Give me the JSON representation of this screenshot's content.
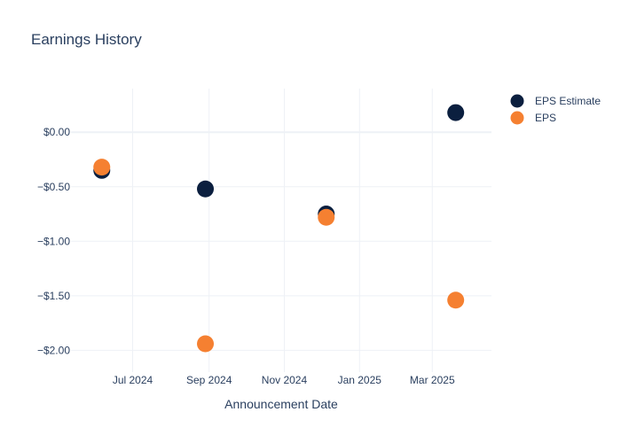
{
  "chart_data": {
    "type": "scatter",
    "title": "Earnings History",
    "xlabel": "Announcement Date",
    "ylabel": "",
    "x_ticks": [
      {
        "date": "2024-07-01",
        "label": "Jul 2024"
      },
      {
        "date": "2024-09-01",
        "label": "Sep 2024"
      },
      {
        "date": "2024-11-01",
        "label": "Nov 2024"
      },
      {
        "date": "2025-01-01",
        "label": "Jan 2025"
      },
      {
        "date": "2025-03-01",
        "label": "Mar 2025"
      }
    ],
    "xlim": [
      "2024-05-12",
      "2025-04-18"
    ],
    "y_ticks": [
      {
        "value": 0,
        "label": "$0.00"
      },
      {
        "value": -0.5,
        "label": "−$0.50"
      },
      {
        "value": -1.0,
        "label": "−$1.00"
      },
      {
        "value": -1.5,
        "label": "−$1.50"
      },
      {
        "value": -2.0,
        "label": "−$2.00"
      }
    ],
    "ylim": [
      -2.2,
      0.4
    ],
    "grid": true,
    "legend_position": "top-right",
    "series": [
      {
        "name": "EPS Estimate",
        "color": "#0b1f3f",
        "points": [
          {
            "x": "2024-06-06",
            "y": -0.35
          },
          {
            "x": "2024-08-29",
            "y": -0.52
          },
          {
            "x": "2024-12-05",
            "y": -0.75
          },
          {
            "x": "2025-03-20",
            "y": 0.18
          }
        ]
      },
      {
        "name": "EPS",
        "color": "#f58031",
        "points": [
          {
            "x": "2024-06-06",
            "y": -0.32
          },
          {
            "x": "2024-08-29",
            "y": -1.94
          },
          {
            "x": "2024-12-05",
            "y": -0.78
          },
          {
            "x": "2025-03-20",
            "y": -1.54
          }
        ]
      }
    ]
  }
}
